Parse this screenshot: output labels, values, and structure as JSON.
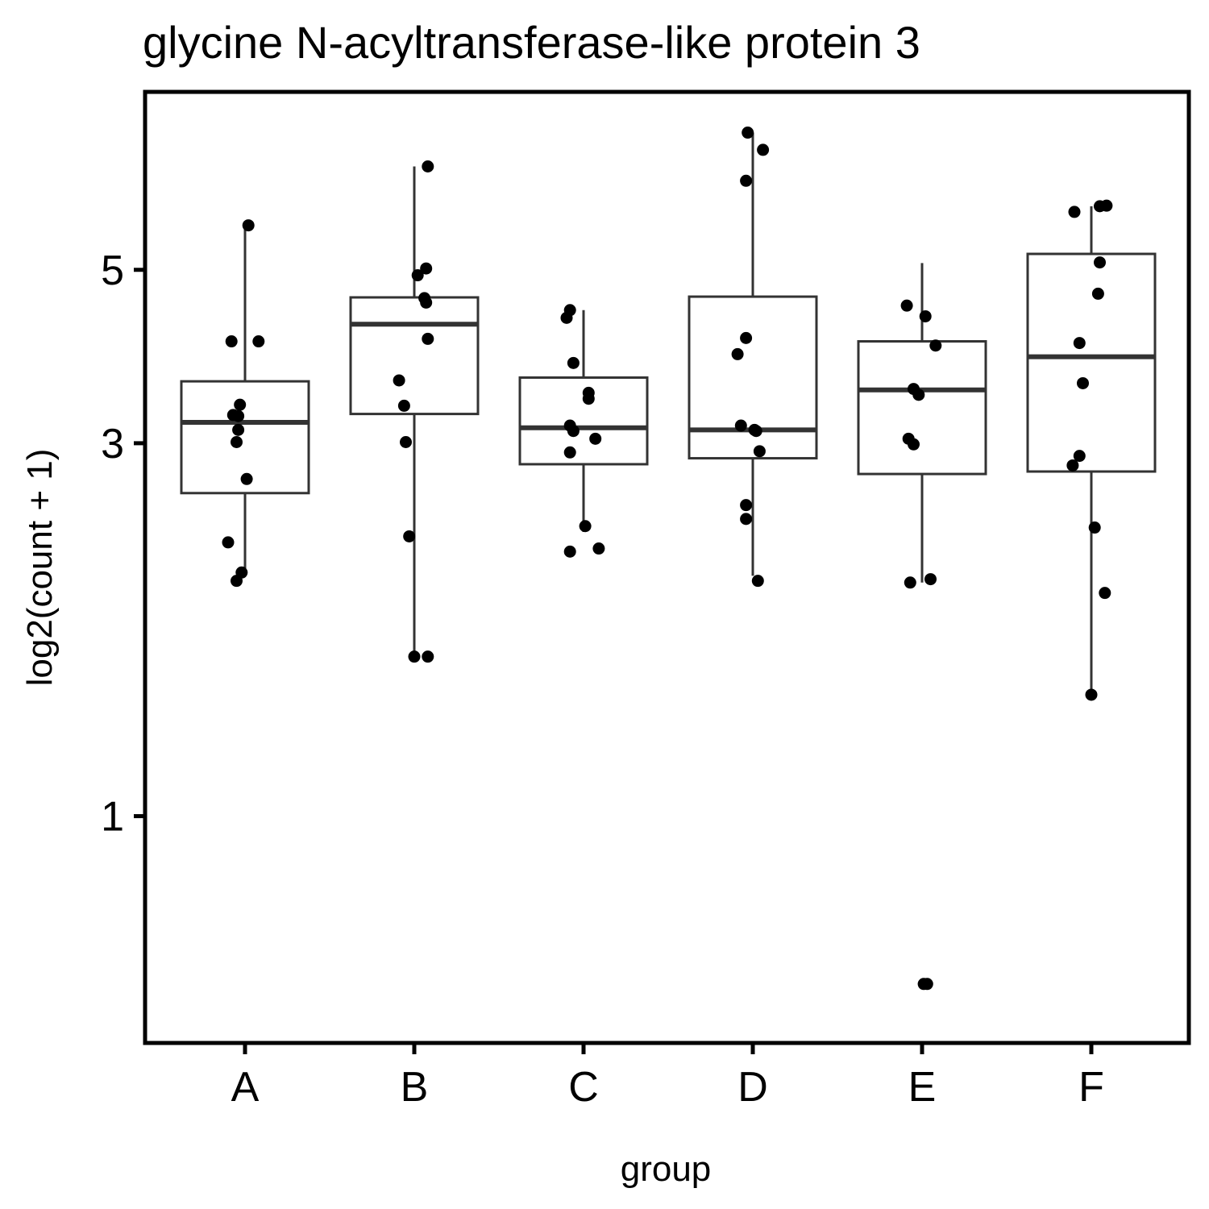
{
  "chart_data": {
    "type": "box",
    "title": "glycine N-acyltransferase-like protein 3",
    "xlabel": "group",
    "ylabel": "log2(count + 1)",
    "y_scale": "log",
    "ylim": [
      0.58,
      7.5
    ],
    "y_ticks": [
      1,
      3,
      5
    ],
    "y_tick_labels": [
      "1",
      "3",
      "5"
    ],
    "grid": false,
    "legend": "none",
    "colors": {
      "box_stroke": "#333333",
      "median": "#333333",
      "point": "#000000",
      "frame": "#000000"
    },
    "categories": [
      "A",
      "B",
      "C",
      "D",
      "E",
      "F"
    ],
    "boxes": [
      {
        "group": "A",
        "whisker_low": 2.05,
        "q1": 2.59,
        "median": 3.19,
        "q3": 3.6,
        "whisker_high": 5.7
      },
      {
        "group": "B",
        "whisker_low": 1.6,
        "q1": 3.27,
        "median": 4.26,
        "q3": 4.61,
        "whisker_high": 6.78
      },
      {
        "group": "C",
        "whisker_low": 2.31,
        "q1": 2.82,
        "median": 3.14,
        "q3": 3.64,
        "whisker_high": 4.44
      },
      {
        "group": "D",
        "whisker_low": 2.03,
        "q1": 2.87,
        "median": 3.12,
        "q3": 4.62,
        "whisker_high": 7.49
      },
      {
        "group": "E",
        "whisker_low": 1.99,
        "q1": 2.74,
        "median": 3.51,
        "q3": 4.05,
        "whisker_high": 5.1
      },
      {
        "group": "F",
        "whisker_low": 1.42,
        "q1": 2.76,
        "median": 3.87,
        "q3": 5.24,
        "whisker_high": 6.03
      }
    ],
    "points": [
      {
        "group": "A",
        "jitter": 0.02,
        "y": 5.7
      },
      {
        "group": "A",
        "jitter": -0.08,
        "y": 4.05
      },
      {
        "group": "A",
        "jitter": 0.08,
        "y": 4.05
      },
      {
        "group": "A",
        "jitter": -0.03,
        "y": 3.36
      },
      {
        "group": "A",
        "jitter": -0.07,
        "y": 3.26
      },
      {
        "group": "A",
        "jitter": -0.04,
        "y": 3.25
      },
      {
        "group": "A",
        "jitter": -0.05,
        "y": 3.01
      },
      {
        "group": "A",
        "jitter": -0.04,
        "y": 3.12
      },
      {
        "group": "A",
        "jitter": 0.01,
        "y": 2.7
      },
      {
        "group": "A",
        "jitter": -0.1,
        "y": 2.24
      },
      {
        "group": "A",
        "jitter": -0.02,
        "y": 2.05
      },
      {
        "group": "A",
        "jitter": -0.05,
        "y": 2.0
      },
      {
        "group": "B",
        "jitter": 0.08,
        "y": 6.78
      },
      {
        "group": "B",
        "jitter": 0.07,
        "y": 5.02
      },
      {
        "group": "B",
        "jitter": 0.02,
        "y": 4.92
      },
      {
        "group": "B",
        "jitter": 0.06,
        "y": 4.6
      },
      {
        "group": "B",
        "jitter": 0.07,
        "y": 4.54
      },
      {
        "group": "B",
        "jitter": 0.08,
        "y": 4.08
      },
      {
        "group": "B",
        "jitter": -0.09,
        "y": 3.61
      },
      {
        "group": "B",
        "jitter": -0.06,
        "y": 3.35
      },
      {
        "group": "B",
        "jitter": -0.05,
        "y": 3.01
      },
      {
        "group": "B",
        "jitter": -0.03,
        "y": 2.28
      },
      {
        "group": "B",
        "jitter": 0.0,
        "y": 1.6
      },
      {
        "group": "B",
        "jitter": 0.08,
        "y": 1.6
      },
      {
        "group": "C",
        "jitter": -0.08,
        "y": 4.44
      },
      {
        "group": "C",
        "jitter": -0.1,
        "y": 4.34
      },
      {
        "group": "C",
        "jitter": -0.06,
        "y": 3.8
      },
      {
        "group": "C",
        "jitter": 0.03,
        "y": 3.48
      },
      {
        "group": "C",
        "jitter": 0.03,
        "y": 3.42
      },
      {
        "group": "C",
        "jitter": -0.08,
        "y": 3.16
      },
      {
        "group": "C",
        "jitter": -0.06,
        "y": 3.11
      },
      {
        "group": "C",
        "jitter": 0.07,
        "y": 3.04
      },
      {
        "group": "C",
        "jitter": -0.08,
        "y": 2.92
      },
      {
        "group": "C",
        "jitter": 0.01,
        "y": 2.35
      },
      {
        "group": "C",
        "jitter": -0.08,
        "y": 2.18
      },
      {
        "group": "C",
        "jitter": 0.09,
        "y": 2.2
      },
      {
        "group": "D",
        "jitter": -0.03,
        "y": 7.49
      },
      {
        "group": "D",
        "jitter": 0.06,
        "y": 7.12
      },
      {
        "group": "D",
        "jitter": -0.04,
        "y": 6.5
      },
      {
        "group": "D",
        "jitter": -0.04,
        "y": 4.09
      },
      {
        "group": "D",
        "jitter": -0.09,
        "y": 3.9
      },
      {
        "group": "D",
        "jitter": -0.07,
        "y": 3.16
      },
      {
        "group": "D",
        "jitter": 0.01,
        "y": 3.12
      },
      {
        "group": "D",
        "jitter": 0.02,
        "y": 3.11
      },
      {
        "group": "D",
        "jitter": 0.04,
        "y": 2.93
      },
      {
        "group": "D",
        "jitter": -0.04,
        "y": 2.5
      },
      {
        "group": "D",
        "jitter": -0.04,
        "y": 2.4
      },
      {
        "group": "D",
        "jitter": 0.03,
        "y": 2.0
      },
      {
        "group": "E",
        "jitter": -0.09,
        "y": 4.5
      },
      {
        "group": "E",
        "jitter": 0.02,
        "y": 4.36
      },
      {
        "group": "E",
        "jitter": 0.08,
        "y": 4.0
      },
      {
        "group": "E",
        "jitter": -0.05,
        "y": 3.52
      },
      {
        "group": "E",
        "jitter": -0.02,
        "y": 3.46
      },
      {
        "group": "E",
        "jitter": -0.08,
        "y": 3.04
      },
      {
        "group": "E",
        "jitter": -0.05,
        "y": 2.99
      },
      {
        "group": "E",
        "jitter": -0.07,
        "y": 1.99
      },
      {
        "group": "E",
        "jitter": 0.05,
        "y": 2.01
      },
      {
        "group": "E",
        "jitter": 0.01,
        "y": 0.61
      },
      {
        "group": "E",
        "jitter": 0.03,
        "y": 0.61
      },
      {
        "group": "F",
        "jitter": 0.05,
        "y": 6.03
      },
      {
        "group": "F",
        "jitter": 0.09,
        "y": 6.04
      },
      {
        "group": "F",
        "jitter": -0.1,
        "y": 5.93
      },
      {
        "group": "F",
        "jitter": 0.05,
        "y": 5.11
      },
      {
        "group": "F",
        "jitter": 0.04,
        "y": 4.66
      },
      {
        "group": "F",
        "jitter": -0.07,
        "y": 4.03
      },
      {
        "group": "F",
        "jitter": -0.05,
        "y": 3.58
      },
      {
        "group": "F",
        "jitter": -0.07,
        "y": 2.89
      },
      {
        "group": "F",
        "jitter": -0.11,
        "y": 2.81
      },
      {
        "group": "F",
        "jitter": 0.02,
        "y": 2.34
      },
      {
        "group": "F",
        "jitter": 0.08,
        "y": 1.93
      },
      {
        "group": "F",
        "jitter": 0.0,
        "y": 1.43
      }
    ]
  }
}
